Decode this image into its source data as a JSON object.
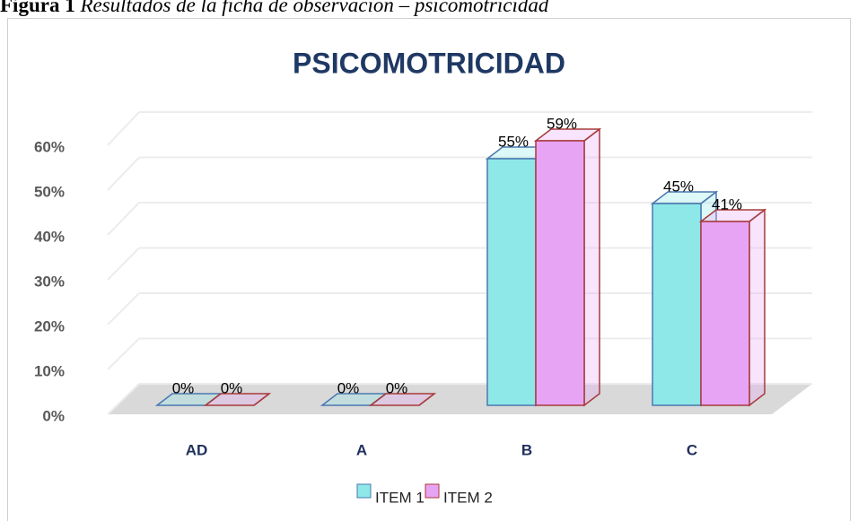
{
  "caption": {
    "label": "Figura 1",
    "text": "Resultados de la ficha de observación – psicomotricidad"
  },
  "chart_data": {
    "type": "bar3d",
    "title": "PSICOMOTRICIDAD",
    "categories": [
      "AD",
      "A",
      "B",
      "C"
    ],
    "series": [
      {
        "name": "ITEM 1",
        "color": "#8ee8e8",
        "stroke": "#4a78b0",
        "values": [
          0,
          0,
          55,
          45
        ],
        "value_labels": [
          "0%",
          "0%",
          "55%",
          "45%"
        ]
      },
      {
        "name": "ITEM 2",
        "color": "#e8a4f4",
        "stroke": "#a83a3a",
        "values": [
          0,
          0,
          59,
          41
        ],
        "value_labels": [
          "0%",
          "0%",
          "59%",
          "41%"
        ]
      }
    ],
    "ylim": [
      0,
      60
    ],
    "yticks": [
      {
        "value": 0,
        "label": "0%"
      },
      {
        "value": 10,
        "label": "10%"
      },
      {
        "value": 20,
        "label": "20%"
      },
      {
        "value": 30,
        "label": "30%"
      },
      {
        "value": 40,
        "label": "40%"
      },
      {
        "value": 50,
        "label": "50%"
      },
      {
        "value": 60,
        "label": "60%"
      }
    ],
    "grid": true,
    "legend": "bottom"
  }
}
